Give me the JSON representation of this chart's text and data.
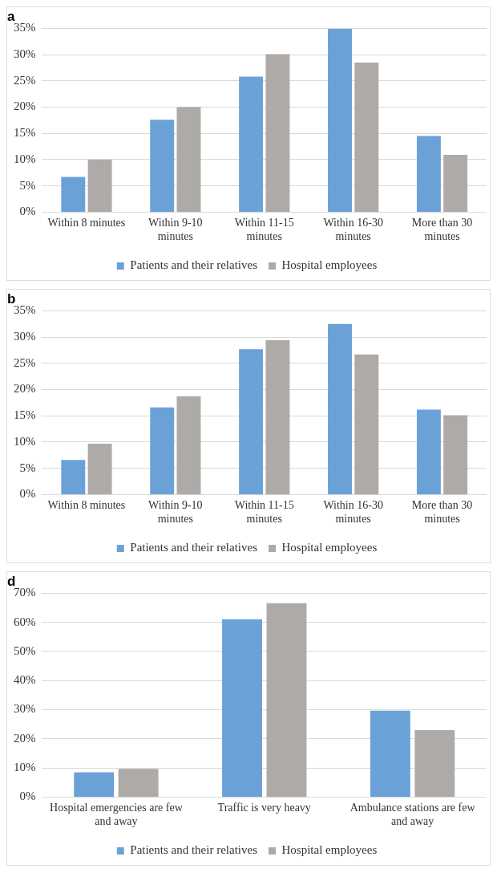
{
  "chart_data": [
    {
      "type": "bar",
      "title": "a",
      "categories": [
        "Within 8 minutes",
        "Within 9-10 minutes",
        "Within 11-15 minutes",
        "Within 16-30 minutes",
        "More than 30 minutes"
      ],
      "series": [
        {
          "name": "Patients and their relatives",
          "color": "#6aa2d8",
          "values": [
            6.7,
            17.6,
            25.8,
            34.9,
            14.5
          ]
        },
        {
          "name": "Hospital employees",
          "color": "#aeaaa8",
          "values": [
            10.0,
            20.0,
            30.1,
            28.5,
            10.9
          ]
        }
      ],
      "ylim": [
        0,
        35
      ],
      "yticks": [
        {
          "value": 0,
          "label": "0%"
        },
        {
          "value": 5,
          "label": "5%"
        },
        {
          "value": 10,
          "label": "10%"
        },
        {
          "value": 15,
          "label": "15%"
        },
        {
          "value": 20,
          "label": "20%"
        },
        {
          "value": 25,
          "label": "25%"
        },
        {
          "value": 30,
          "label": "30%"
        },
        {
          "value": 35,
          "label": "35%"
        }
      ],
      "grid": "y",
      "legend": "bottom"
    },
    {
      "type": "bar",
      "title": "b",
      "categories": [
        "Within 8 minutes",
        "Within 9-10 minutes",
        "Within 11-15 minutes",
        "Within 16-30 minutes",
        "More than 30 minutes"
      ],
      "series": [
        {
          "name": "Patients and their relatives",
          "color": "#6aa2d8",
          "values": [
            6.6,
            16.6,
            27.7,
            32.5,
            16.2
          ]
        },
        {
          "name": "Hospital employees",
          "color": "#aeaaa8",
          "values": [
            9.7,
            18.7,
            29.4,
            26.7,
            15.1
          ]
        }
      ],
      "ylim": [
        0,
        35
      ],
      "yticks": [
        {
          "value": 0,
          "label": "0%"
        },
        {
          "value": 5,
          "label": "5%"
        },
        {
          "value": 10,
          "label": "10%"
        },
        {
          "value": 15,
          "label": "15%"
        },
        {
          "value": 20,
          "label": "20%"
        },
        {
          "value": 25,
          "label": "25%"
        },
        {
          "value": 30,
          "label": "30%"
        },
        {
          "value": 35,
          "label": "35%"
        }
      ],
      "grid": "y",
      "legend": "bottom"
    },
    {
      "type": "bar",
      "title": "d",
      "categories": [
        "Hospital emergencies are few and away",
        "Traffic is very heavy",
        "Ambulance stations are few and away"
      ],
      "series": [
        {
          "name": "Patients and their relatives",
          "color": "#6aa2d8",
          "values": [
            8.5,
            61.1,
            29.7
          ]
        },
        {
          "name": "Hospital employees",
          "color": "#aeaaa8",
          "values": [
            9.7,
            66.6,
            23.0
          ]
        }
      ],
      "ylim": [
        0,
        70
      ],
      "yticks": [
        {
          "value": 0,
          "label": "0%"
        },
        {
          "value": 10,
          "label": "10%"
        },
        {
          "value": 20,
          "label": "20%"
        },
        {
          "value": 30,
          "label": "30%"
        },
        {
          "value": 40,
          "label": "40%"
        },
        {
          "value": 50,
          "label": "50%"
        },
        {
          "value": 60,
          "label": "60%"
        },
        {
          "value": 70,
          "label": "70%"
        }
      ],
      "grid": "y",
      "legend": "bottom"
    }
  ]
}
